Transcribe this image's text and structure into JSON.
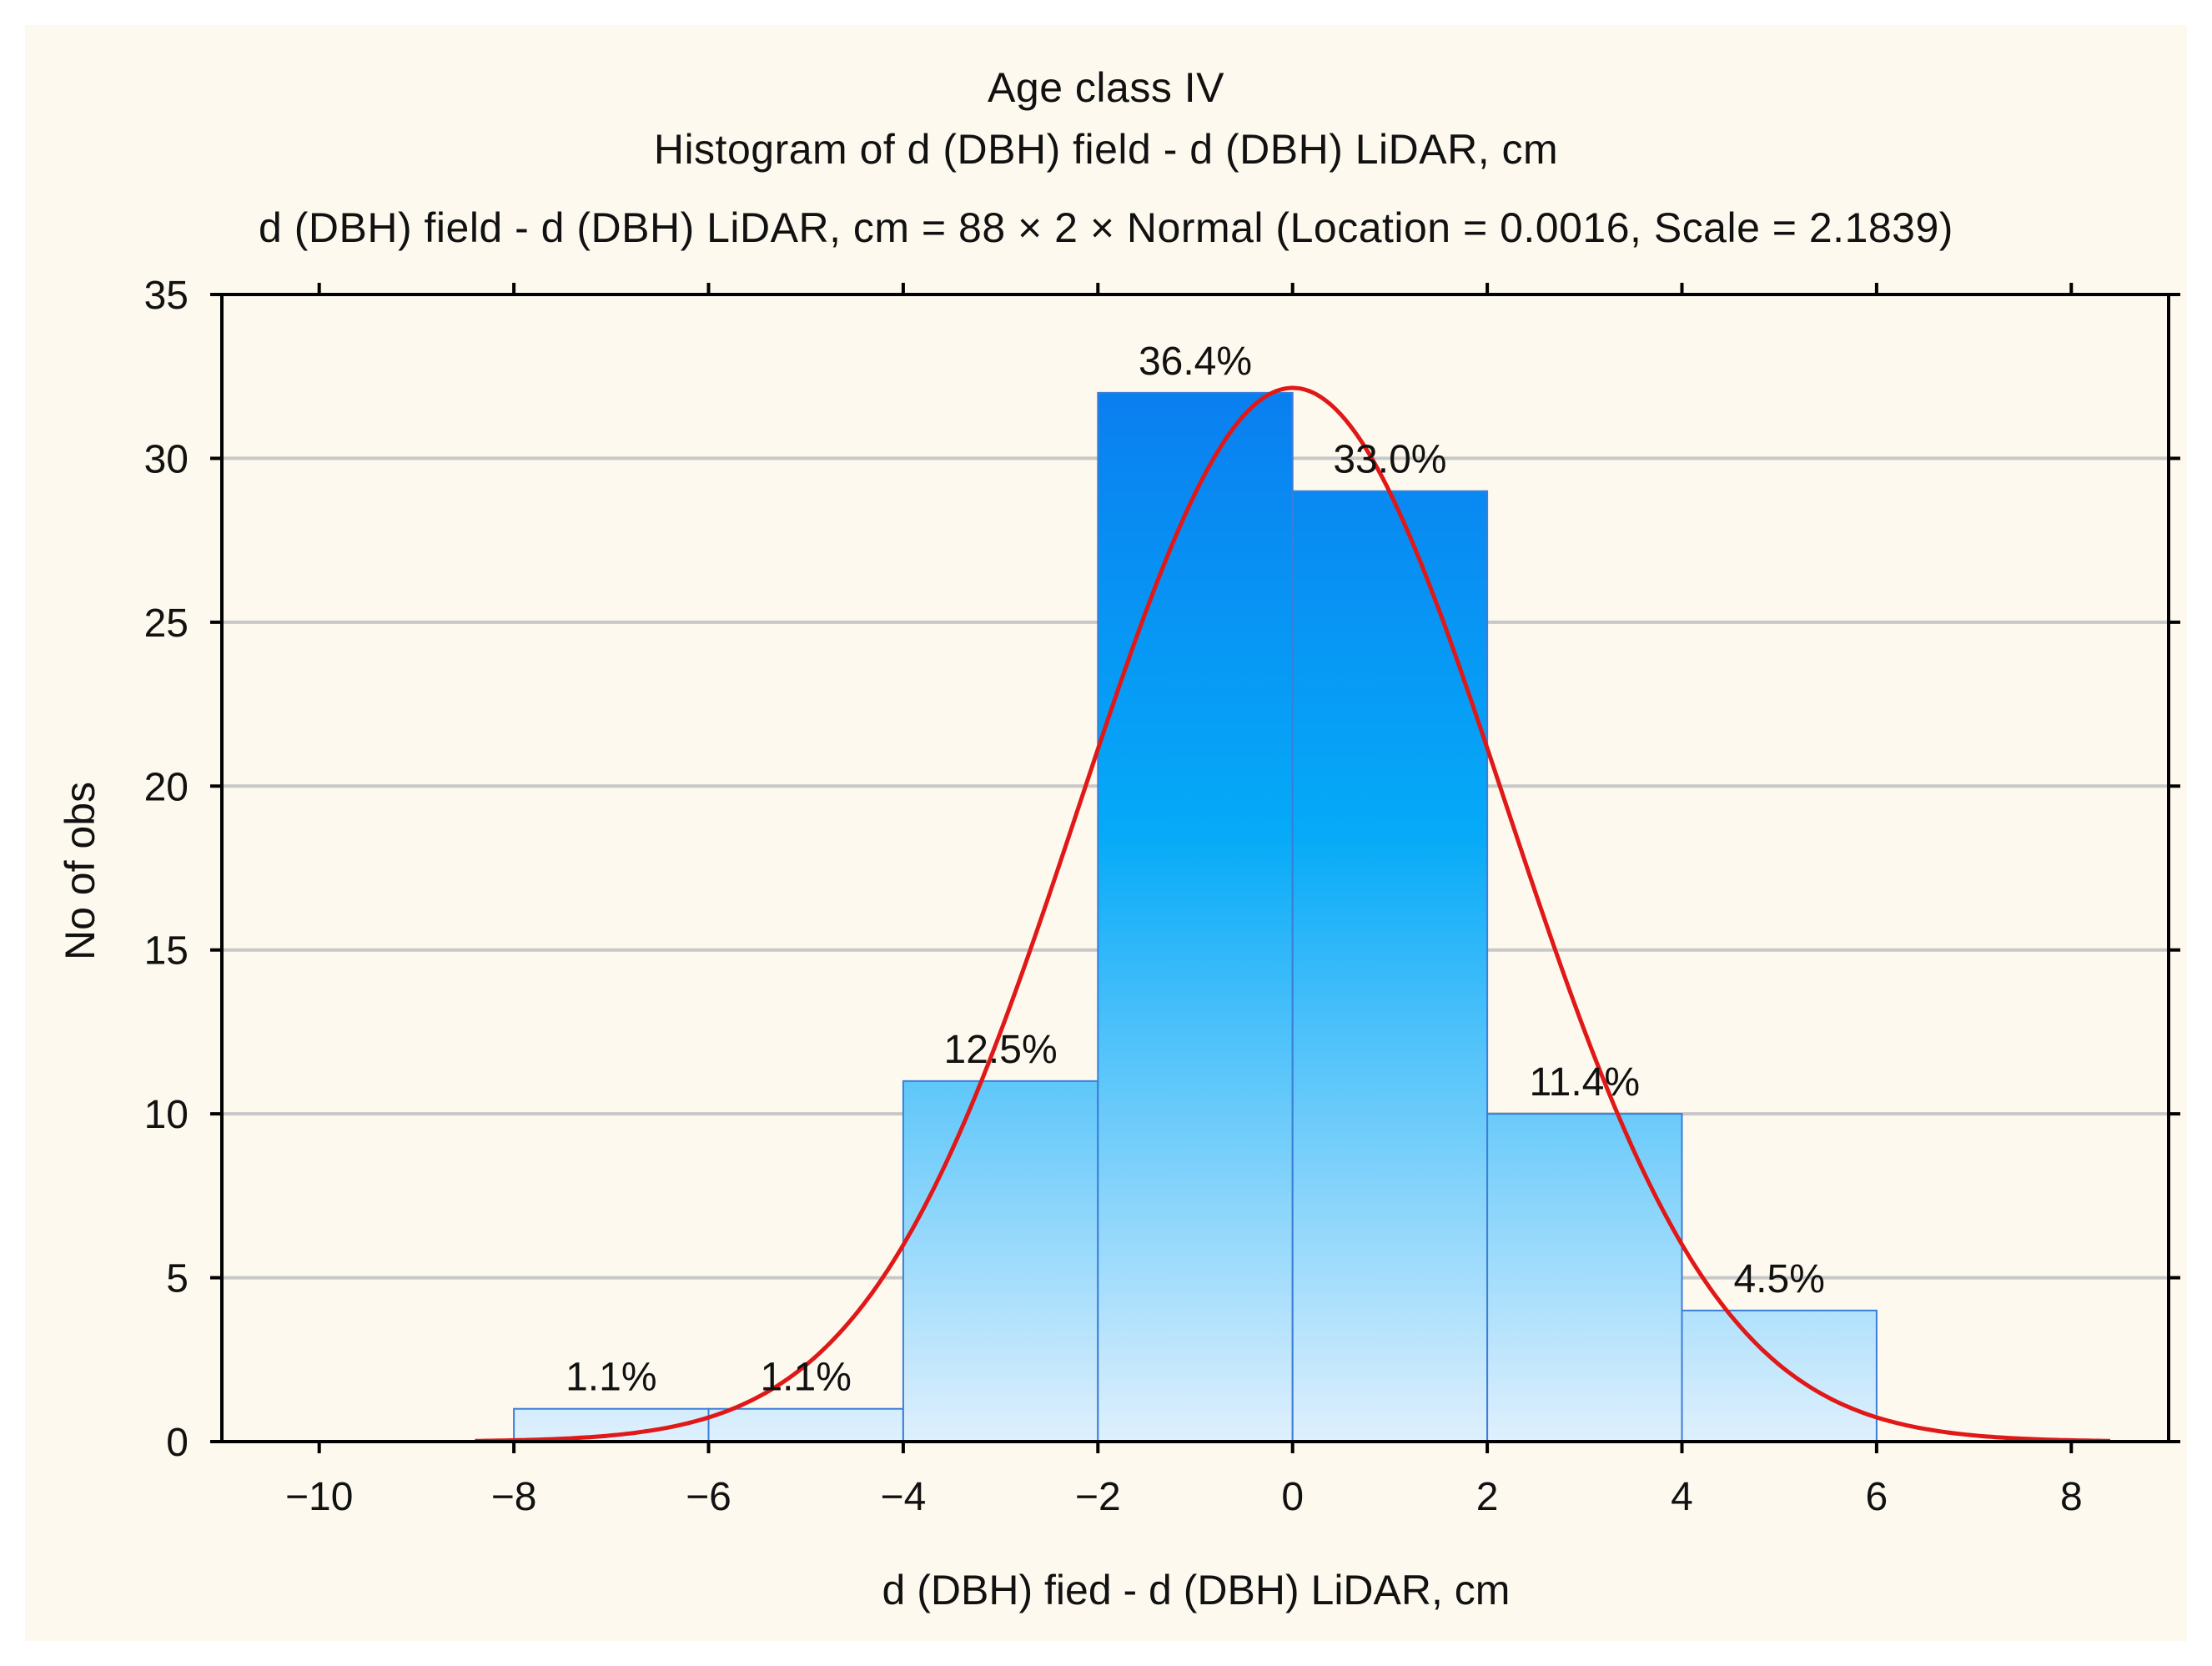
{
  "chart_data": {
    "type": "bar",
    "title_lines": [
      "Age class IV",
      "Histogram of d (DBH) field - d (DBH) LiDAR, cm",
      "d (DBH) field - d (DBH) LiDAR, cm = 88 × 2 × Normal (Location = 0.0016, Scale = 2.1839)"
    ],
    "xlabel": "d (DBH) fied - d (DBH) LiDAR, cm",
    "ylabel": "No of obs",
    "xlim": [
      -11,
      9
    ],
    "ylim": [
      0,
      35
    ],
    "x_ticks": [
      -10,
      -8,
      -6,
      -4,
      -2,
      0,
      2,
      4,
      6,
      8
    ],
    "x_tick_labels": [
      "−10",
      "−8",
      "−6",
      "−4",
      "−2",
      "0",
      "2",
      "4",
      "6",
      "8"
    ],
    "y_ticks": [
      0,
      5,
      10,
      15,
      20,
      25,
      30,
      35
    ],
    "grid": true,
    "bins": [
      {
        "x0": -8,
        "x1": -6,
        "count": 1,
        "label": "1.1%"
      },
      {
        "x0": -6,
        "x1": -4,
        "count": 1,
        "label": "1.1%"
      },
      {
        "x0": -4,
        "x1": -2,
        "count": 11,
        "label": "12.5%"
      },
      {
        "x0": -2,
        "x1": 0,
        "count": 32,
        "label": "36.4%"
      },
      {
        "x0": 0,
        "x1": 2,
        "count": 29,
        "label": "33.0%"
      },
      {
        "x0": 2,
        "x1": 4,
        "count": 10,
        "label": "11.4%"
      },
      {
        "x0": 4,
        "x1": 6,
        "count": 4,
        "label": "4.5%"
      }
    ],
    "fit": {
      "distribution": "Normal",
      "n": 88,
      "bin_width": 2,
      "location": 0.0016,
      "scale": 2.1839,
      "x_range": [
        -8.4,
        8.4
      ]
    },
    "colors": {
      "curve": "#e01818",
      "bar_top": "#0a7ff0",
      "bar_mid": "#05aaf8",
      "bar_bottom": "#dff0fd",
      "bar_edge": "#3a7ed8",
      "grid": "#c8c8c8",
      "axis": "#000000",
      "background": "#fdf9ee"
    }
  }
}
